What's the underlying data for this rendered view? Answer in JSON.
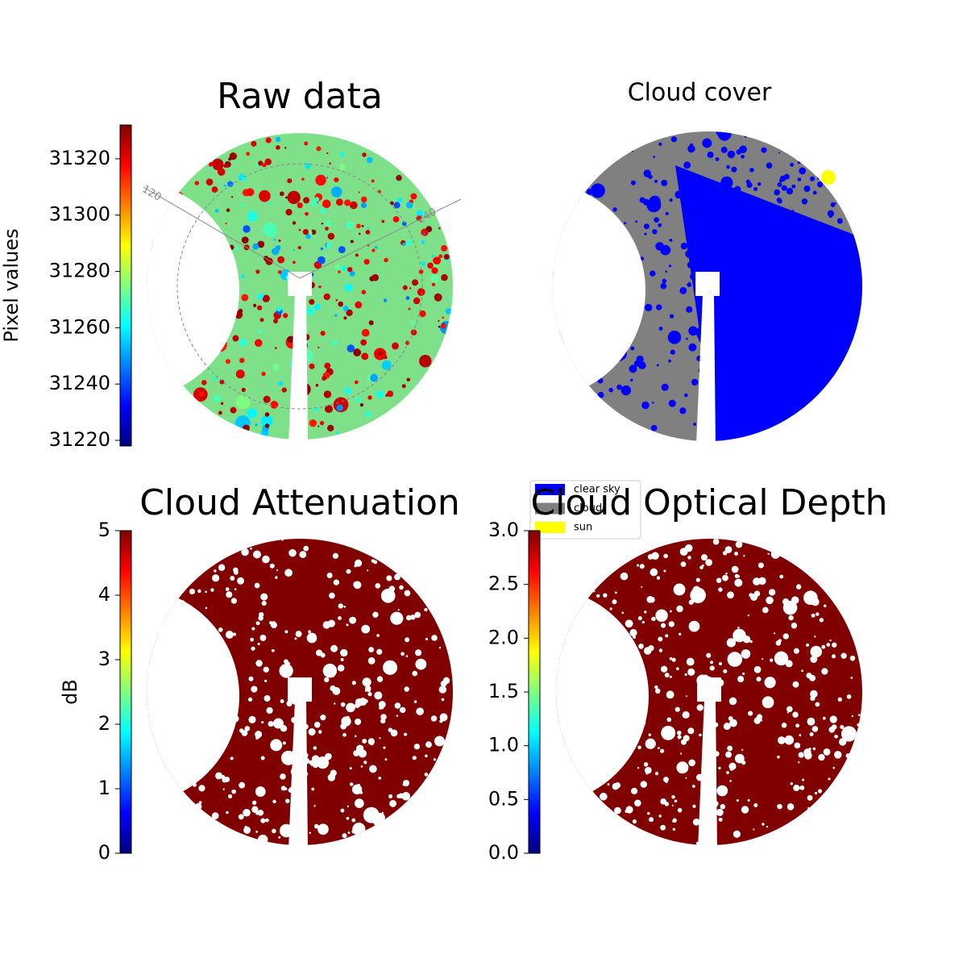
{
  "chart_data": [
    {
      "type": "image",
      "title": "Raw data",
      "annotations": [
        "120",
        "240"
      ],
      "colorbar": {
        "label": "Pixel values",
        "colormap": "jet",
        "lim": [
          31218,
          31332
        ],
        "ticks": [
          31220,
          31240,
          31260,
          31280,
          31300,
          31320
        ]
      }
    },
    {
      "type": "image",
      "title": "Cloud cover",
      "legend": [
        {
          "name": "clear sky",
          "color": "#0000ff"
        },
        {
          "name": "cloud",
          "color": "#808080"
        },
        {
          "name": "sun",
          "color": "#ffff00"
        }
      ]
    },
    {
      "type": "image",
      "title": "Cloud Attenuation",
      "colorbar": {
        "label": "dB",
        "colormap": "jet",
        "lim": [
          0,
          5
        ],
        "ticks": [
          0,
          1,
          2,
          3,
          4,
          5
        ]
      }
    },
    {
      "type": "image",
      "title": "Cloud Optical Depth",
      "colorbar": {
        "colormap": "jet",
        "lim": [
          0,
          3
        ],
        "ticks": [
          {
            "value": 0,
            "label": "0.0"
          },
          0.5,
          {
            "value": 1,
            "label": "1.0"
          },
          1.5,
          {
            "value": 2,
            "label": "2.0"
          },
          2.5,
          {
            "value": 3,
            "label": "3.0"
          }
        ]
      }
    }
  ]
}
